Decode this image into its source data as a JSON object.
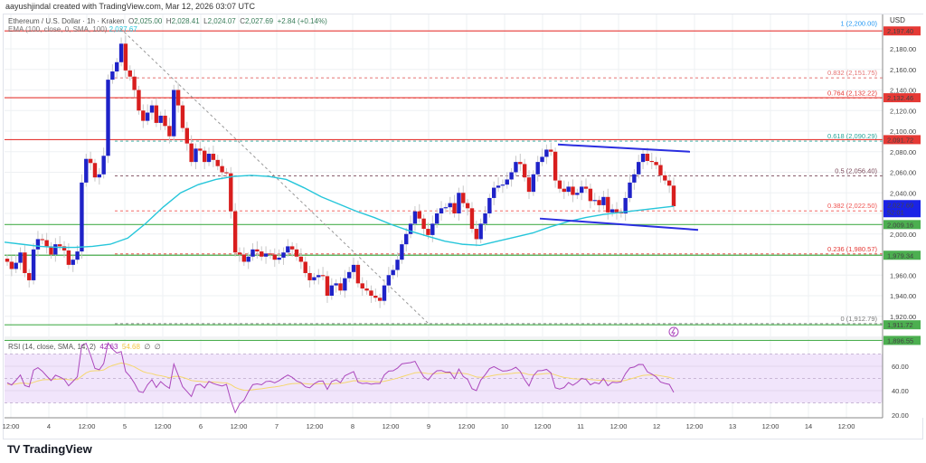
{
  "credit": "aayushjindal created with TradingView.com, Mar 12, 2026 03:07 UTC",
  "legend": {
    "symbol": "Ethereum / U.S. Dollar · 1h · Kraken",
    "open_label": "O",
    "open": "2,025.00",
    "high_label": "H",
    "high": "2,028.41",
    "low_label": "L",
    "low": "2,024.07",
    "close_label": "C",
    "close": "2,027.69",
    "change": "+2.84 (+0.14%)"
  },
  "ema_legend": {
    "label": "EMA (100, close, 0, SMA, 100)",
    "value": "2,027.67"
  },
  "rsi_legend": {
    "label": "RSI (14, close, SMA, 14, 2)",
    "rsi": "42.63",
    "sma": "54.68",
    "extra1": "∅",
    "extra2": "∅"
  },
  "currency": "USD",
  "brand": {
    "name": "TradingView",
    "mark": "TV"
  },
  "colors": {
    "bull": "#1e22c8",
    "bear": "#d81e1e",
    "ema": "#26c6da",
    "resistance": "#e53935",
    "support": "#4caf50",
    "trendline": "#2a2ee0",
    "rsi": "#ab47bc",
    "rsi_sma": "#f5d76e",
    "rsi_band": "#f1e5fb",
    "last_price_bg": "#1a23e6"
  },
  "chart_data": [
    {
      "type": "candlestick",
      "title": "Ethereum / U.S. Dollar · 1h · Kraken",
      "xlabel": "",
      "ylabel": "USD",
      "ylim": [
        1890,
        2205
      ],
      "x_ticks": [
        "12:00",
        "4",
        "12:00",
        "5",
        "12:00",
        "6",
        "12:00",
        "7",
        "12:00",
        "8",
        "12:00",
        "9",
        "12:00",
        "10",
        "12:00",
        "11",
        "12:00",
        "12",
        "12:00",
        "13",
        "12:00",
        "14",
        "12:00"
      ],
      "y_ticks": [
        1920,
        1940,
        1960,
        1980,
        2000,
        2020,
        2040,
        2060,
        2080,
        2100,
        2120,
        2140,
        2160,
        2180
      ],
      "last_price": 2027.69,
      "countdown": "52:01",
      "horizontal_levels": [
        {
          "price": 2197.4,
          "label": "2,197.40",
          "color": "#e53935",
          "kind": "resistance"
        },
        {
          "price": 2132.46,
          "label": "2,132.46",
          "color": "#e53935",
          "kind": "resistance"
        },
        {
          "price": 2091.72,
          "label": "2,091.72",
          "color": "#e53935",
          "kind": "resistance"
        },
        {
          "price": 2009.16,
          "label": "2,009.16",
          "color": "#4caf50",
          "kind": "support"
        },
        {
          "price": 1979.34,
          "label": "1,979.34",
          "color": "#4caf50",
          "kind": "support"
        },
        {
          "price": 1911.72,
          "label": "1,911.72",
          "color": "#4caf50",
          "kind": "support"
        },
        {
          "price": 1896.55,
          "label": "1,896.55",
          "color": "#4caf50",
          "kind": "support"
        }
      ],
      "fibonacci": [
        {
          "ratio": "1",
          "price": 2200.0,
          "label": "1 (2,200.00)",
          "color": "#2196f3"
        },
        {
          "ratio": "0.832",
          "price": 2151.75,
          "label": "0.832 (2,151.75)",
          "color": "#e57373"
        },
        {
          "ratio": "0.764",
          "price": 2132.22,
          "label": "0.764 (2,132.22)",
          "color": "#e53935"
        },
        {
          "ratio": "0.618",
          "price": 2090.29,
          "label": "0.618 (2,090.29)",
          "color": "#26a69a"
        },
        {
          "ratio": "0.5",
          "price": 2056.4,
          "label": "0.5 (2,056.40)",
          "color": "#7b4a5a"
        },
        {
          "ratio": "0.382",
          "price": 2022.5,
          "label": "0.382 (2,022.50)",
          "color": "#ef5350"
        },
        {
          "ratio": "0.236",
          "price": 1980.57,
          "label": "0.236 (1,980.57)",
          "color": "#e53935"
        },
        {
          "ratio": "0",
          "price": 1912.79,
          "label": "0 (1,912.79)",
          "color": "#777777"
        }
      ],
      "trendlines": [
        {
          "name": "upper-channel",
          "from": [
            617,
            2087
          ],
          "to": [
            763,
            2080
          ]
        },
        {
          "name": "lower-channel",
          "from": [
            597,
            2015
          ],
          "to": [
            772,
            2004
          ]
        },
        {
          "name": "fib-diagonal",
          "from": [
            133,
            2200
          ],
          "to": [
            474,
            1912.79
          ]
        }
      ],
      "candles_close_path": [
        1973,
        1966,
        1972,
        1982,
        1962,
        1955,
        1985,
        1995,
        1994,
        1988,
        1980,
        1990,
        1988,
        1984,
        1970,
        1975,
        1983,
        2050,
        2073,
        2069,
        2055,
        2058,
        2076,
        2150,
        2158,
        2167,
        2185,
        2159,
        2153,
        2140,
        2120,
        2110,
        2118,
        2125,
        2108,
        2115,
        2105,
        2095,
        2140,
        2125,
        2103,
        2088,
        2070,
        2083,
        2081,
        2070,
        2078,
        2072,
        2066,
        2060,
        2059,
        2022,
        1982,
        1980,
        1973,
        1978,
        1985,
        1983,
        1978,
        1981,
        1980,
        1975,
        1977,
        1982,
        1988,
        1985,
        1978,
        1973,
        1962,
        1955,
        1958,
        1960,
        1959,
        1940,
        1950,
        1952,
        1945,
        1957,
        1963,
        1970,
        1952,
        1947,
        1945,
        1940,
        1938,
        1935,
        1950,
        1960,
        1965,
        1975,
        1990,
        2000,
        2010,
        2022,
        2015,
        2005,
        1999,
        2010,
        2020,
        2025,
        2026,
        2030,
        2020,
        2040,
        2030,
        2025,
        2005,
        1995,
        2010,
        2020,
        2035,
        2045,
        2047,
        2048,
        2053,
        2060,
        2070,
        2068,
        2055,
        2041,
        2058,
        2070,
        2075,
        2082,
        2080,
        2052,
        2044,
        2041,
        2046,
        2038,
        2040,
        2046,
        2044,
        2032,
        2033,
        2028,
        2036,
        2021,
        2024,
        2021,
        2020,
        2035,
        2050,
        2058,
        2070,
        2078,
        2071,
        2070,
        2067,
        2057,
        2052,
        2047,
        2027
      ],
      "ema100_path": [
        1992,
        1990,
        1988,
        1987,
        1987,
        1988,
        1990,
        1996,
        2010,
        2026,
        2040,
        2048,
        2053,
        2056,
        2057,
        2056,
        2053,
        2045,
        2036,
        2029,
        2022,
        2016,
        2009,
        2003,
        1998,
        1993,
        1990,
        1989,
        1993,
        1997,
        2001,
        2007,
        2012,
        2016,
        2019,
        2021,
        2023,
        2025,
        2027
      ],
      "rsi": {
        "ylim": [
          15,
          85
        ],
        "y_ticks": [
          20,
          40,
          60,
          80
        ],
        "upper_band": 70,
        "lower_band": 30,
        "middle": 50,
        "last_rsi": 42.63,
        "last_sma": 54.68
      }
    }
  ]
}
